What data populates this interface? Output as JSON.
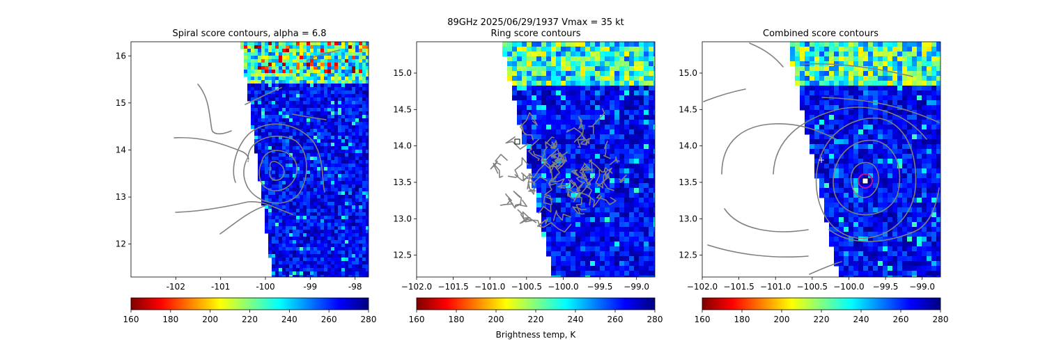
{
  "figure": {
    "suptitle_line1": "89GHz  2025/06/29/1937    Vmax = 35 kt",
    "colorbar_label": "Brightness temp, K"
  },
  "colormap": {
    "name": "jet_r",
    "stops": [
      "#800000",
      "#ff0000",
      "#ff8000",
      "#ffff00",
      "#80ff80",
      "#00ffff",
      "#0080ff",
      "#0000ff",
      "#000080"
    ]
  },
  "colors": {
    "contour": "#808080",
    "circle_marker": "#c0169c",
    "square_marker": "#ffffff",
    "plus_marker": "#ffffff"
  },
  "chart_data": [
    {
      "type": "heatmap",
      "title": "Spiral score contours, alpha =  6.8",
      "xlabel": "",
      "ylabel": "",
      "xlim": [
        -103.0,
        -97.7
      ],
      "ylim": [
        11.3,
        16.3
      ],
      "xticks": [
        "-102",
        "-101",
        "-100",
        "-99",
        "-98"
      ],
      "xtick_values": [
        -102,
        -101,
        -100,
        -99,
        -98
      ],
      "yticks": [
        "12",
        "13",
        "14",
        "15",
        "16"
      ],
      "ytick_values": [
        12,
        13,
        14,
        15,
        16
      ],
      "swath_edge": [
        [
          -100.5,
          16.3
        ],
        [
          -99.8,
          11.3
        ]
      ],
      "center_plus": [
        -100.3,
        13.8
      ],
      "colorbar": {
        "range": [
          160,
          280
        ],
        "ticks": [
          "160",
          "180",
          "200",
          "220",
          "240",
          "260",
          "280"
        ]
      }
    },
    {
      "type": "heatmap",
      "title": "Ring score contours",
      "xlabel": "",
      "ylabel": "",
      "xlim": [
        -102.0,
        -98.75
      ],
      "ylim": [
        12.2,
        15.43
      ],
      "xticks": [
        "−102.0",
        "−101.5",
        "−101.0",
        "−100.5",
        "−100.0",
        "−99.5",
        "−99.0"
      ],
      "xtick_values": [
        -102.0,
        -101.5,
        -101.0,
        -100.5,
        -100.0,
        -99.5,
        -99.0
      ],
      "yticks": [
        "12.5",
        "13.0",
        "13.5",
        "14.0",
        "14.5",
        "15.0"
      ],
      "ytick_values": [
        12.5,
        13.0,
        13.5,
        14.0,
        14.5,
        15.0
      ],
      "swath_edge": [
        [
          -100.8,
          15.43
        ],
        [
          -100.1,
          12.2
        ]
      ],
      "ring_center": [
        -99.95,
        13.6
      ],
      "square_marker": [
        -100.55,
        14.05
      ],
      "colorbar": {
        "range": [
          160,
          280
        ],
        "ticks": [
          "160",
          "180",
          "200",
          "220",
          "240",
          "260",
          "280"
        ]
      }
    },
    {
      "type": "heatmap",
      "title": "Combined score contours",
      "xlabel": "",
      "ylabel": "",
      "xlim": [
        -102.0,
        -98.75
      ],
      "ylim": [
        12.2,
        15.43
      ],
      "xticks": [
        "−102.0",
        "−101.5",
        "−101.0",
        "−100.5",
        "−100.0",
        "−99.5",
        "−99.0"
      ],
      "xtick_values": [
        -102.0,
        -101.5,
        -101.0,
        -100.5,
        -100.0,
        -99.5,
        -99.0
      ],
      "yticks": [
        "12.5",
        "13.0",
        "13.5",
        "14.0",
        "14.5",
        "15.0"
      ],
      "ytick_values": [
        12.5,
        13.0,
        13.5,
        14.0,
        14.5,
        15.0
      ],
      "swath_edge": [
        [
          -100.8,
          15.43
        ],
        [
          -100.1,
          12.2
        ]
      ],
      "center_plus": [
        -100.3,
        13.8
      ],
      "square_marker": [
        -99.75,
        13.5
      ],
      "circle_marker": [
        -99.75,
        13.5
      ],
      "colorbar": {
        "range": [
          160,
          280
        ],
        "ticks": [
          "160",
          "180",
          "200",
          "220",
          "240",
          "260",
          "280"
        ]
      }
    }
  ]
}
